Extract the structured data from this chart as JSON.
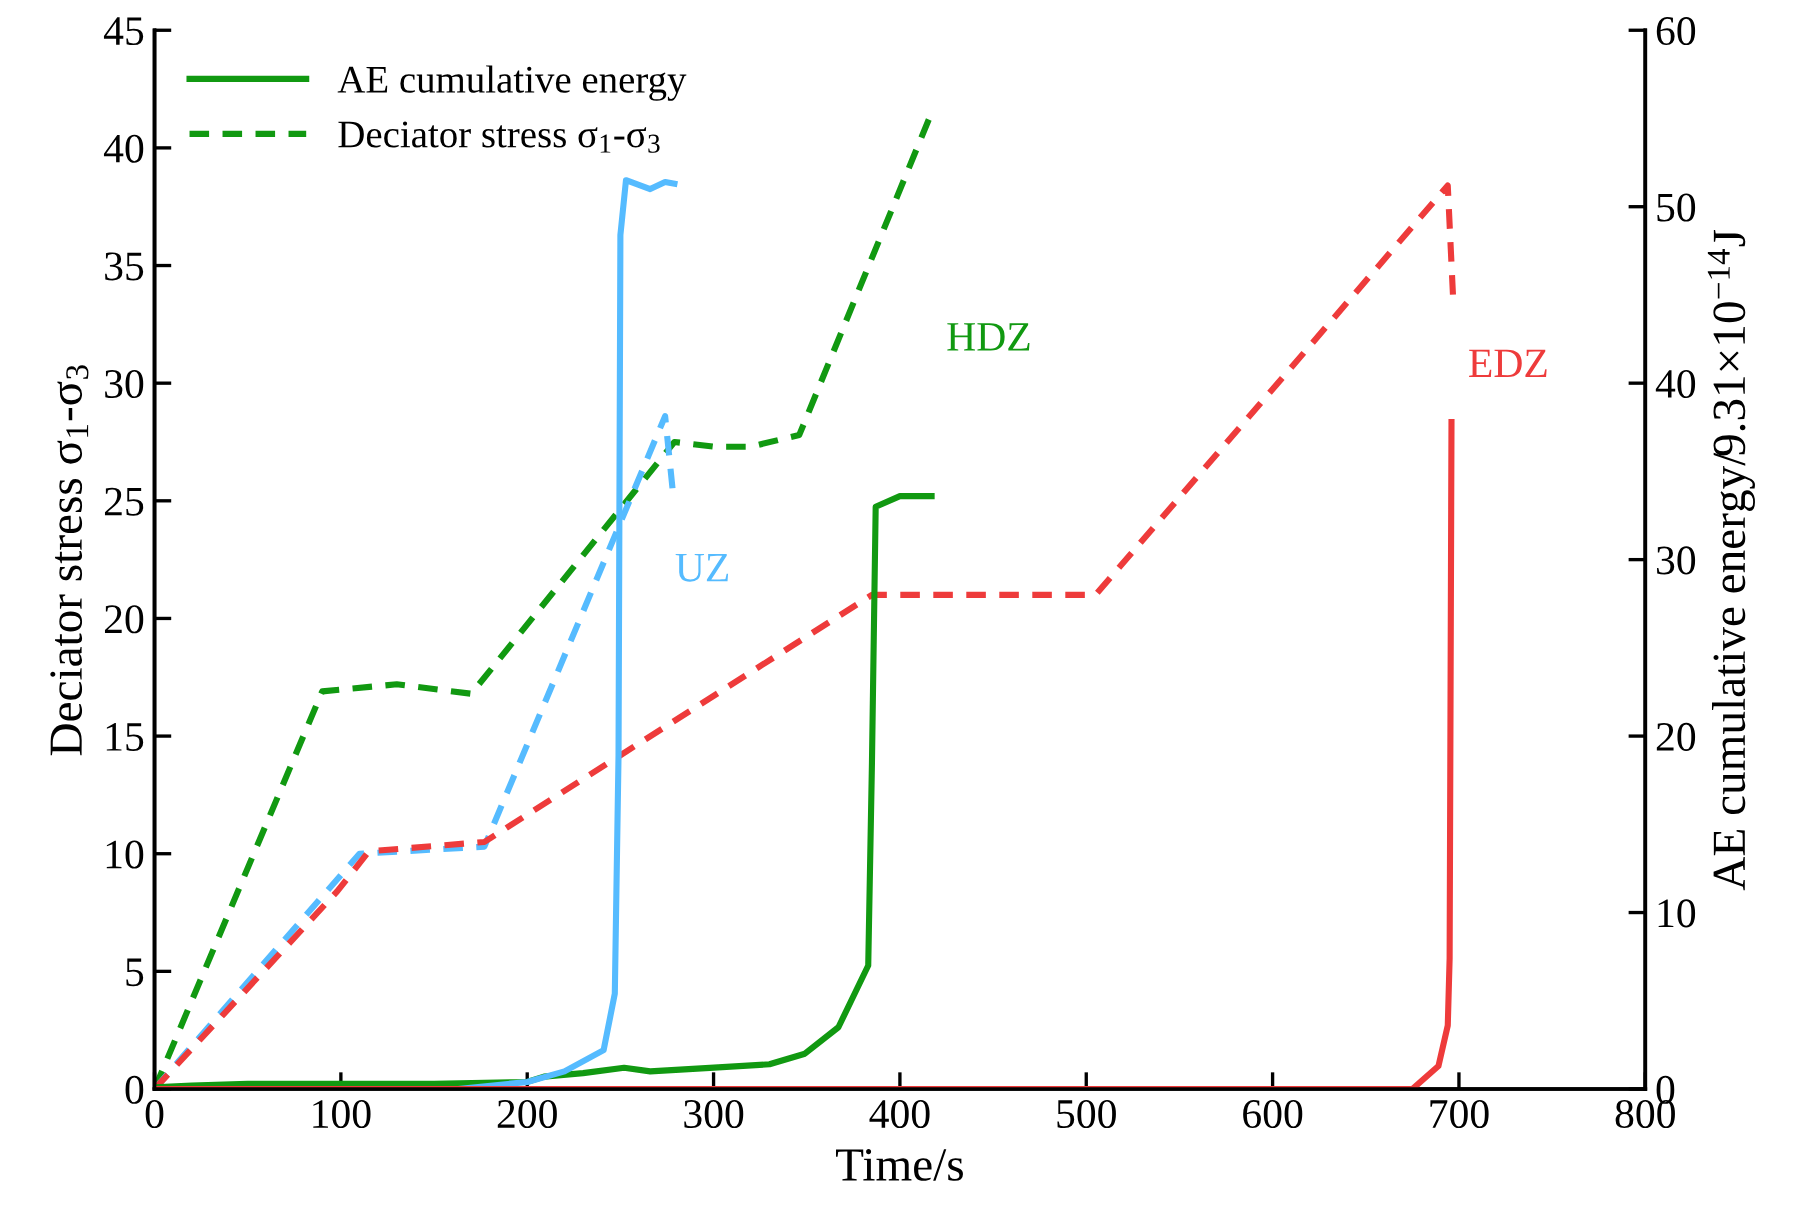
{
  "chart_data": {
    "type": "line",
    "xlabel": "Time/s",
    "ylabel": "Deciator stress σ$_{1}$-σ$_{3}$",
    "y2label": "AE cumulative energy/9.31×10$^{−14}$J",
    "xlim": [
      0,
      800
    ],
    "xticks": [
      0,
      100,
      200,
      300,
      400,
      500,
      600,
      700,
      800
    ],
    "ylim": [
      0,
      45
    ],
    "yticks": [
      0,
      5,
      10,
      15,
      20,
      25,
      30,
      35,
      40,
      45
    ],
    "y2lim": [
      0,
      60
    ],
    "y2ticks": [
      0,
      10,
      20,
      30,
      40,
      50,
      60
    ],
    "grid": false,
    "legend": "top left",
    "marker": "none",
    "series": [
      {
        "name": "AE cumulative energy",
        "color": "#119911",
        "axis": "y2",
        "line_style": "solid",
        "x": [
          0,
          20,
          50,
          100,
          150,
          200,
          209,
          230,
          252,
          266,
          298,
          330,
          349,
          367,
          383,
          385,
          387,
          400,
          417
        ],
        "values": [
          0.1,
          0.2,
          0.3,
          0.3,
          0.3,
          0.4,
          0.7,
          0.9,
          1.2,
          1.0,
          1.2,
          1.4,
          2.0,
          3.5,
          7.0,
          18.5,
          33.0,
          33.6,
          33.6
        ]
      },
      {
        "name": "Deciator stress σ$_{1}$-σ$_{3}$",
        "color": "#119911",
        "line_style": "dashed",
        "x": [
          0,
          90,
          130,
          170,
          279,
          300,
          320,
          346,
          417
        ],
        "values": [
          0,
          16.9,
          17.2,
          16.8,
          27.5,
          27.3,
          27.3,
          27.8,
          41.5
        ]
      },
      {
        "color": "#55bbff",
        "axis": "y2",
        "line_style": "solid",
        "x": [
          0,
          163,
          200,
          220,
          241,
          247,
          249,
          250,
          253,
          266,
          274,
          279
        ],
        "values": [
          0,
          0,
          0.4,
          1.0,
          2.2,
          5.4,
          18.9,
          48.4,
          51.5,
          51.0,
          51.4,
          51.3
        ]
      },
      {
        "color": "#55bbff",
        "line_style": "dashed",
        "x": [
          0,
          110,
          177,
          274,
          278
        ],
        "values": [
          0,
          10.0,
          10.3,
          28.6,
          25.5
        ]
      },
      {
        "color": "#ee3b3b",
        "axis": "y2",
        "line_style": "solid",
        "x": [
          0,
          675,
          689,
          694,
          695,
          696
        ],
        "values": [
          0,
          0,
          1.3,
          3.6,
          7.4,
          37.8
        ]
      },
      {
        "color": "#ee3b3b",
        "line_style": "dashed",
        "x": [
          0,
          98,
          115,
          177,
          385,
          505,
          694,
          697
        ],
        "values": [
          0,
          8.4,
          10.1,
          10.5,
          21.0,
          21.0,
          38.4,
          33.4
        ]
      }
    ],
    "annotations": [
      "UZ",
      "HDZ",
      "EDZ"
    ]
  }
}
